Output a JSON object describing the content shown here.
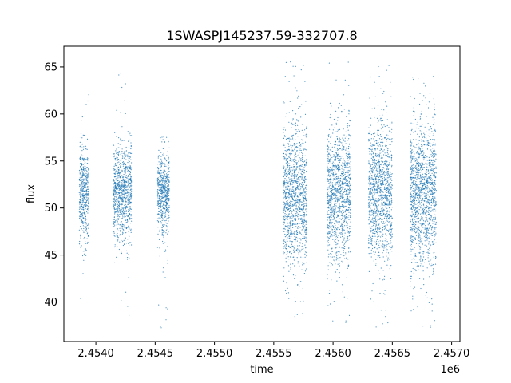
{
  "chart_data": {
    "type": "scatter",
    "title": "1SWASPJ145237.59-332707.8",
    "xlabel": "time",
    "ylabel": "flux",
    "x_offset_label": "1e6",
    "xlim": [
      2453730,
      2457070
    ],
    "ylim": [
      35.8,
      67.2
    ],
    "x_ticks": [
      2454000,
      2454500,
      2455000,
      2455500,
      2456000,
      2456500,
      2457000
    ],
    "x_tick_labels": [
      "2.4540",
      "2.4545",
      "2.4550",
      "2.4555",
      "2.4560",
      "2.4565",
      "2.4570"
    ],
    "y_ticks": [
      40,
      45,
      50,
      55,
      60,
      65
    ],
    "y_tick_labels": [
      "40",
      "45",
      "50",
      "55",
      "60",
      "65"
    ],
    "marker_color": "#1f77b4",
    "grid": false,
    "legend": "none",
    "clusters": [
      {
        "x": [
          2453860,
          2453940
        ],
        "center": 51.5,
        "spread": 2.5,
        "min": 39.5,
        "max": 63.0
      },
      {
        "x": [
          2454150,
          2454300
        ],
        "center": 51.5,
        "spread": 2.6,
        "min": 38.5,
        "max": 65.5
      },
      {
        "x": [
          2454520,
          2454620
        ],
        "center": 51.5,
        "spread": 2.2,
        "min": 37.0,
        "max": 59.0
      },
      {
        "x": [
          2455580,
          2455780
        ],
        "center": 51.0,
        "spread": 3.8,
        "min": 38.0,
        "max": 65.8
      },
      {
        "x": [
          2455950,
          2456150
        ],
        "center": 51.5,
        "spread": 3.5,
        "min": 37.5,
        "max": 65.5
      },
      {
        "x": [
          2456300,
          2456500
        ],
        "center": 51.5,
        "spread": 3.8,
        "min": 37.0,
        "max": 65.8
      },
      {
        "x": [
          2456650,
          2456870
        ],
        "center": 51.5,
        "spread": 3.8,
        "min": 37.0,
        "max": 64.0
      }
    ]
  }
}
